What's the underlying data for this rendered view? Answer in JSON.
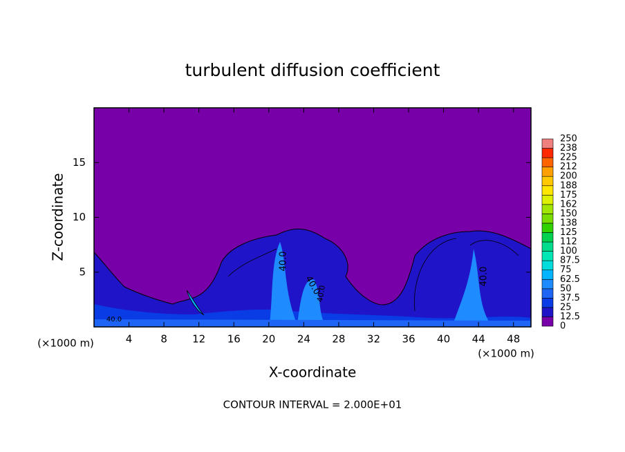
{
  "chart_data": {
    "type": "contour",
    "title": "turbulent diffusion coefficient",
    "x_label": "X-coordinate",
    "y_label": "Z-coordinate",
    "x_unit_left": "(×1000 m)",
    "x_unit_right": "(×1000 m)",
    "footer": "CONTOUR INTERVAL = 2.000E+01",
    "contour_labels": [
      "40.0",
      "40.0",
      "40.0",
      "40.0",
      "40.0"
    ],
    "xlim": [
      0,
      50
    ],
    "xticks": [
      4,
      8,
      12,
      16,
      20,
      24,
      28,
      32,
      36,
      40,
      44,
      48
    ],
    "ylim": [
      0,
      20
    ],
    "yticks": [
      5,
      10,
      15
    ],
    "colorbar": {
      "levels": [
        0,
        12.5,
        25,
        37.5,
        50,
        62.5,
        75,
        87.5,
        100,
        {
          "value": 112.5,
          "label": "112"
        },
        125,
        {
          "value": 137.5,
          "label": "138"
        },
        150,
        {
          "value": 162.5,
          "label": "162"
        },
        175,
        {
          "value": 187.5,
          "label": "188"
        },
        200,
        {
          "value": 212.5,
          "label": "212"
        },
        225,
        {
          "value": 237.5,
          "label": "238"
        },
        250
      ],
      "colors": [
        "#7800a8",
        "#2014c8",
        "#0a3ce6",
        "#1e64f5",
        "#1e8cff",
        "#00b4ff",
        "#00dcdc",
        "#00e6b4",
        "#00dc8c",
        "#00d250",
        "#32d200",
        "#78dc00",
        "#a0e600",
        "#dcf000",
        "#ffe600",
        "#ffc800",
        "#ffa000",
        "#ff6400",
        "#ff2800",
        "#f08080"
      ]
    }
  }
}
